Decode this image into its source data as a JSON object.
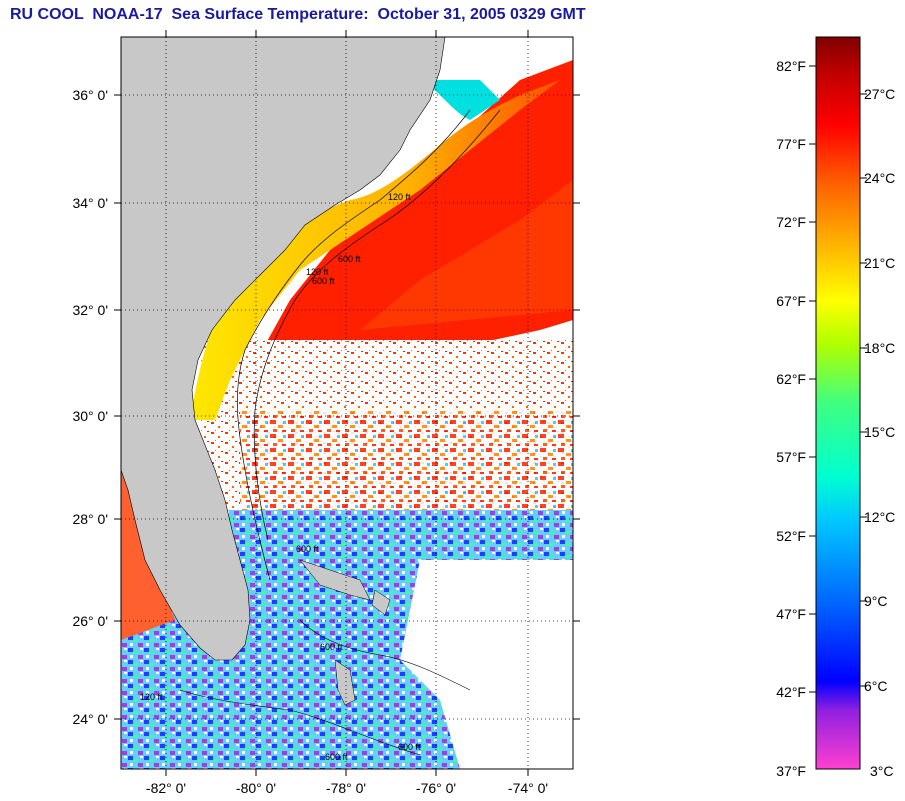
{
  "title": "RU COOL  NOAA-17  Sea Surface Temperature:  October 31, 2005 0329 GMT",
  "map": {
    "lat_labels": [
      "36° 0'",
      "34° 0'",
      "32° 0'",
      "30° 0'",
      "28° 0'",
      "26° 0'",
      "24° 0'"
    ],
    "lon_labels": [
      "-82° 0'",
      "-80° 0'",
      "-78° 0'",
      "-76° 0'",
      "-74° 0'"
    ],
    "contour_labels": [
      "120 ft",
      "600 ft",
      "120 ft",
      "600 ft",
      "600 ft",
      "600 ft",
      "120 ft",
      "600 ft",
      "600 ft"
    ],
    "colors": {
      "land": "#c8c8c8",
      "warm_water": "#ff1a00",
      "gulf_stream_core": "#ff0000",
      "shelf_cool": "#ffd200",
      "coastal_cold": "#00e0ff",
      "cloud": "#ffffff"
    }
  },
  "colorbar": {
    "fahrenheit_labels": [
      "82°F",
      "77°F",
      "72°F",
      "67°F",
      "62°F",
      "57°F",
      "52°F",
      "47°F",
      "42°F",
      "37°F"
    ],
    "celsius_labels": [
      "27°C",
      "24°C",
      "21°C",
      "18°C",
      "15°C",
      "12°C",
      "9°C",
      "6°C",
      "3°C"
    ],
    "range_f": [
      37,
      84
    ],
    "range_c": [
      3,
      29
    ],
    "gradient": [
      "#ff40d0",
      "#9020e0",
      "#0000ff",
      "#0060ff",
      "#00c8ff",
      "#00ffd0",
      "#40ff80",
      "#b0ff00",
      "#ffff00",
      "#ffb000",
      "#ff6000",
      "#ff0000",
      "#c00000",
      "#800000"
    ]
  }
}
